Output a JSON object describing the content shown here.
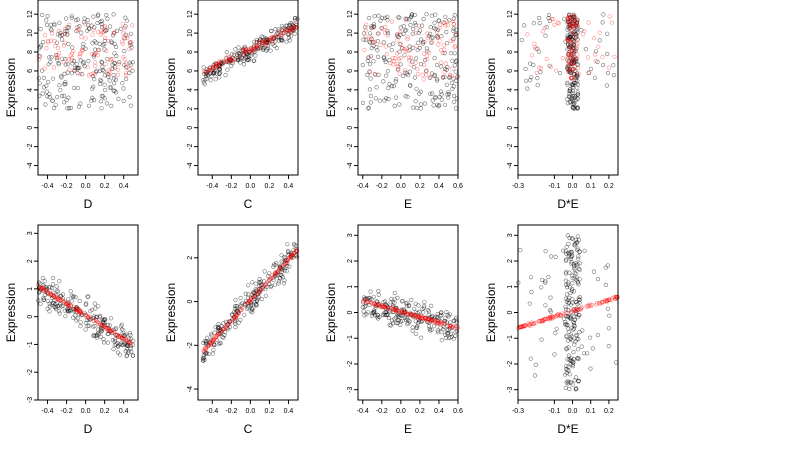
{
  "colors": {
    "observed": "#000000",
    "fitted": "#ff0000"
  },
  "chart_data": [
    {
      "type": "scatter",
      "xlabel": "D",
      "ylabel": "Expression",
      "xlim": [
        -0.5,
        0.55
      ],
      "ylim": [
        -5,
        13.5
      ],
      "xticks": [
        "-0.4",
        "-0.2",
        "0.0",
        "0.2",
        "0.4"
      ],
      "xtick_values": [
        -0.4,
        -0.2,
        0,
        0.2,
        0.4
      ],
      "yticks": [
        "-4",
        "-2",
        "0",
        "2",
        "4",
        "6",
        "8",
        "10",
        "12"
      ],
      "ytick_values": [
        -4,
        -2,
        0,
        2,
        4,
        6,
        8,
        10,
        12
      ],
      "point_clusters": [
        {
          "series": "observed",
          "x": [
            -0.5,
            0.5
          ],
          "y": [
            2,
            12
          ],
          "n": 230
        },
        {
          "series": "fitted",
          "x": [
            -0.5,
            0.5
          ],
          "y": [
            5.5,
            11
          ],
          "n": 100
        }
      ]
    },
    {
      "type": "scatter",
      "xlabel": "C",
      "ylabel": "Expression",
      "xlim": [
        -0.55,
        0.5
      ],
      "ylim": [
        -5,
        13.5
      ],
      "xticks": [
        "-0.4",
        "-0.2",
        "0.0",
        "0.2",
        "0.4"
      ],
      "xtick_values": [
        -0.4,
        -0.2,
        0,
        0.2,
        0.4
      ],
      "yticks": [
        "-4",
        "-2",
        "0",
        "2",
        "4",
        "6",
        "8",
        "10",
        "12"
      ],
      "ytick_values": [
        -4,
        -2,
        0,
        2,
        4,
        6,
        8,
        10,
        12
      ],
      "point_clusters": [
        {
          "series": "observed",
          "x": [
            -0.5,
            0.5
          ],
          "y": [
            3.5,
            12
          ],
          "trend": [
            [
              -0.5,
              5.5
            ],
            [
              0.5,
              10.8
            ]
          ],
          "spread": 1.5,
          "n": 230
        },
        {
          "series": "fitted",
          "x": [
            -0.5,
            0.5
          ],
          "y": [
            5.5,
            11
          ],
          "trend": [
            [
              -0.5,
              5.8
            ],
            [
              0.5,
              10.8
            ]
          ],
          "spread": 0.5,
          "n": 110
        }
      ]
    },
    {
      "type": "scatter",
      "xlabel": "E",
      "ylabel": "Expression",
      "xlim": [
        -0.45,
        0.6
      ],
      "ylim": [
        -5,
        13.5
      ],
      "xticks": [
        "-0.4",
        "-0.2",
        "0.0",
        "0.2",
        "0.4",
        "0.6"
      ],
      "xtick_values": [
        -0.4,
        -0.2,
        0,
        0.2,
        0.4,
        0.6
      ],
      "yticks": [
        "-4",
        "-2",
        "0",
        "2",
        "4",
        "6",
        "8",
        "10",
        "12"
      ],
      "ytick_values": [
        -4,
        -2,
        0,
        2,
        4,
        6,
        8,
        10,
        12
      ],
      "point_clusters": [
        {
          "series": "observed",
          "x": [
            -0.4,
            0.6
          ],
          "y": [
            2,
            12
          ],
          "n": 230
        },
        {
          "series": "fitted",
          "x": [
            -0.4,
            0.6
          ],
          "y": [
            5,
            11.5
          ],
          "n": 100
        }
      ]
    },
    {
      "type": "scatter",
      "xlabel": "D*E",
      "ylabel": "Expression",
      "xlim": [
        -0.3,
        0.25
      ],
      "ylim": [
        -5,
        13.5
      ],
      "xticks": [
        "-0.3",
        "-0.1",
        "0.0",
        "0.1",
        "0.2"
      ],
      "xtick_values": [
        -0.3,
        -0.1,
        0,
        0.1,
        0.2
      ],
      "yticks": [
        "-4",
        "-2",
        "0",
        "2",
        "4",
        "6",
        "8",
        "10",
        "12"
      ],
      "ytick_values": [
        -4,
        -2,
        0,
        2,
        4,
        6,
        8,
        10,
        12
      ],
      "point_clusters": [
        {
          "series": "observed",
          "x": [
            -0.03,
            0.03
          ],
          "y": [
            2,
            12
          ],
          "n": 180
        },
        {
          "series": "observed",
          "x": [
            -0.28,
            0.24
          ],
          "y": [
            4,
            12
          ],
          "n": 50
        },
        {
          "series": "fitted",
          "x": [
            -0.03,
            0.03
          ],
          "y": [
            5,
            12
          ],
          "n": 80
        },
        {
          "series": "fitted",
          "x": [
            -0.25,
            0.25
          ],
          "y": [
            5.5,
            12
          ],
          "n": 40
        }
      ]
    },
    {
      "type": "scatter",
      "xlabel": "D",
      "ylabel": "Expression",
      "xlim": [
        -0.5,
        0.55
      ],
      "ylim": [
        -3,
        3.3
      ],
      "xticks": [
        "-0.4",
        "-0.2",
        "0.0",
        "0.2",
        "0.4"
      ],
      "xtick_values": [
        -0.4,
        -0.2,
        0,
        0.2,
        0.4
      ],
      "yticks": [
        "-3",
        "-2",
        "-1",
        "0",
        "1",
        "2",
        "3"
      ],
      "ytick_values": [
        -3,
        -2,
        -1,
        0,
        1,
        2,
        3
      ],
      "point_clusters": [
        {
          "series": "observed",
          "x": [
            -0.5,
            0.5
          ],
          "y": [
            -2.8,
            3.2
          ],
          "trend": [
            [
              -0.5,
              1.1
            ],
            [
              0.5,
              -1.1
            ]
          ],
          "spread": 0.9,
          "n": 230
        },
        {
          "series": "fitted",
          "x": [
            -0.5,
            0.5
          ],
          "y": [
            -1.2,
            1.2
          ],
          "trend": [
            [
              -0.5,
              1.1
            ],
            [
              0.5,
              -1.0
            ]
          ],
          "spread": 0.08,
          "n": 130
        }
      ]
    },
    {
      "type": "scatter",
      "xlabel": "C",
      "ylabel": "Expression",
      "xlim": [
        -0.55,
        0.5
      ],
      "ylim": [
        -4.5,
        3.5
      ],
      "xticks": [
        "-0.4",
        "-0.2",
        "0.0",
        "0.2",
        "0.4"
      ],
      "xtick_values": [
        -0.4,
        -0.2,
        0,
        0.2,
        0.4
      ],
      "yticks": [
        "-4",
        "-2",
        "0",
        "2"
      ],
      "ytick_values": [
        -4,
        -2,
        0,
        2
      ],
      "point_clusters": [
        {
          "series": "observed",
          "x": [
            -0.5,
            0.5
          ],
          "y": [
            -4.2,
            3.3
          ],
          "trend": [
            [
              -0.5,
              -2.3
            ],
            [
              0.5,
              2.4
            ]
          ],
          "spread": 1.0,
          "n": 230
        },
        {
          "series": "fitted",
          "x": [
            -0.5,
            0.5
          ],
          "y": [
            -2.5,
            2.5
          ],
          "trend": [
            [
              -0.5,
              -2.3
            ],
            [
              0.5,
              2.4
            ]
          ],
          "spread": 0.1,
          "n": 130
        }
      ]
    },
    {
      "type": "scatter",
      "xlabel": "E",
      "ylabel": "Expression",
      "xlim": [
        -0.45,
        0.6
      ],
      "ylim": [
        -3.4,
        3.4
      ],
      "xticks": [
        "-0.4",
        "-0.2",
        "0.0",
        "0.2",
        "0.4",
        "0.6"
      ],
      "xtick_values": [
        -0.4,
        -0.2,
        0,
        0.2,
        0.4,
        0.6
      ],
      "yticks": [
        "-3",
        "-2",
        "-1",
        "0",
        "1",
        "2",
        "3"
      ],
      "ytick_values": [
        -3,
        -2,
        -1,
        0,
        1,
        2,
        3
      ],
      "point_clusters": [
        {
          "series": "observed",
          "x": [
            -0.4,
            0.6
          ],
          "y": [
            -3.2,
            3.1
          ],
          "trend": [
            [
              -0.4,
              0.45
            ],
            [
              0.6,
              -0.6
            ]
          ],
          "spread": 0.9,
          "n": 230
        },
        {
          "series": "fitted",
          "x": [
            -0.4,
            0.6
          ],
          "y": [
            -0.8,
            0.6
          ],
          "trend": [
            [
              -0.4,
              0.45
            ],
            [
              0.6,
              -0.6
            ]
          ],
          "spread": 0.07,
          "n": 130
        }
      ]
    },
    {
      "type": "scatter",
      "xlabel": "D*E",
      "ylabel": "Expression",
      "xlim": [
        -0.3,
        0.25
      ],
      "ylim": [
        -3.4,
        3.4
      ],
      "xticks": [
        "-0.3",
        "-0.1",
        "0.0",
        "0.1",
        "0.2"
      ],
      "xtick_values": [
        -0.3,
        -0.1,
        0,
        0.1,
        0.2
      ],
      "yticks": [
        "-3",
        "-2",
        "-1",
        "0",
        "1",
        "2",
        "3"
      ],
      "ytick_values": [
        -3,
        -2,
        -1,
        0,
        1,
        2,
        3
      ],
      "point_clusters": [
        {
          "series": "observed",
          "x": [
            -0.04,
            0.04
          ],
          "y": [
            -3,
            3
          ],
          "n": 170
        },
        {
          "series": "observed",
          "x": [
            -0.3,
            0.25
          ],
          "y": [
            -2.5,
            2.5
          ],
          "n": 60
        },
        {
          "series": "fitted",
          "x": [
            -0.3,
            0.25
          ],
          "y": [
            -0.8,
            0.8
          ],
          "trend": [
            [
              -0.3,
              -0.6
            ],
            [
              0.25,
              0.6
            ]
          ],
          "spread": 0.07,
          "n": 120
        }
      ]
    }
  ]
}
